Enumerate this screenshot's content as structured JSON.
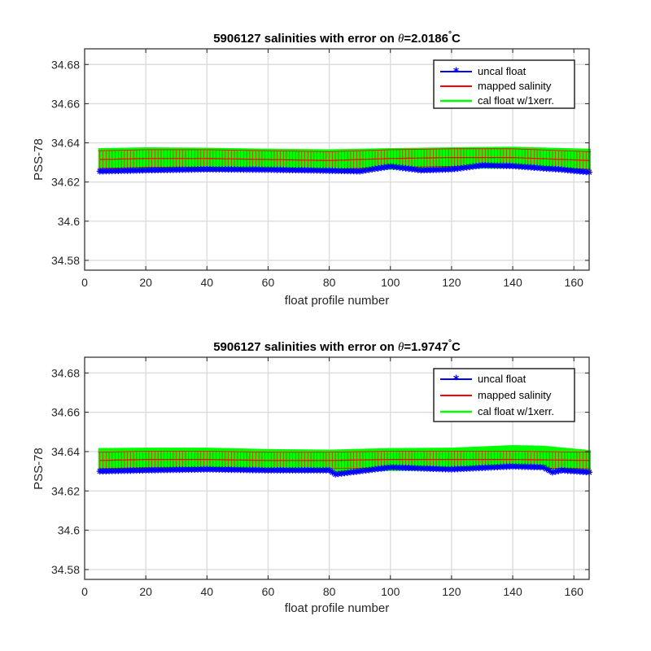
{
  "chart_data": [
    {
      "type": "line",
      "title_prefix": "5906127 salinities with error on ",
      "title_theta": "θ",
      "title_value": "=2.0186",
      "title_deg": "°",
      "title_unit": "C",
      "xlabel": "float profile number",
      "ylabel": "PSS-78",
      "xlim": [
        0,
        165
      ],
      "ylim": [
        34.575,
        34.688
      ],
      "xticks": [
        0,
        20,
        40,
        60,
        80,
        100,
        120,
        140,
        160
      ],
      "yticks": [
        34.58,
        34.6,
        34.62,
        34.64,
        34.66,
        34.68
      ],
      "ytick_labels": [
        "34.58",
        "34.6",
        "34.62",
        "34.64",
        "34.66",
        "34.68"
      ],
      "grid": true,
      "legend_position": "top-right",
      "legend": [
        "uncal float",
        "mapped salinity",
        "cal float w/1xerr."
      ],
      "colors": {
        "uncal": "#0000ff",
        "mapped": "#ff0000",
        "cal": "#00ff00"
      },
      "x_start": 5,
      "x_end": 165,
      "series": [
        {
          "name": "uncal float",
          "keypoints_x": [
            5,
            20,
            40,
            60,
            80,
            90,
            100,
            110,
            120,
            130,
            140,
            150,
            155,
            165
          ],
          "keypoints_y": [
            34.6255,
            34.626,
            34.6265,
            34.6263,
            34.6258,
            34.6255,
            34.628,
            34.626,
            34.6265,
            34.6285,
            34.6282,
            34.627,
            34.6265,
            34.625
          ]
        },
        {
          "name": "mapped salinity",
          "keypoints_x": [
            5,
            20,
            40,
            60,
            80,
            100,
            120,
            140,
            165
          ],
          "keypoints_y": [
            34.6315,
            34.632,
            34.632,
            34.6315,
            34.631,
            34.632,
            34.6325,
            34.6325,
            34.631
          ],
          "error": 0.0045
        },
        {
          "name": "cal float w/1xerr.",
          "keypoints_x": [
            5,
            20,
            40,
            60,
            80,
            100,
            120,
            140,
            165
          ],
          "keypoints_y": [
            34.6318,
            34.6322,
            34.632,
            34.6315,
            34.6312,
            34.6318,
            34.6322,
            34.6325,
            34.6315
          ],
          "error": 0.0055
        }
      ]
    },
    {
      "type": "line",
      "title_prefix": "5906127 salinities with error on ",
      "title_theta": "θ",
      "title_value": "=1.9747",
      "title_deg": "°",
      "title_unit": "C",
      "xlabel": "float profile number",
      "ylabel": "PSS-78",
      "xlim": [
        0,
        165
      ],
      "ylim": [
        34.575,
        34.688
      ],
      "xticks": [
        0,
        20,
        40,
        60,
        80,
        100,
        120,
        140,
        160
      ],
      "yticks": [
        34.58,
        34.6,
        34.62,
        34.64,
        34.66,
        34.68
      ],
      "ytick_labels": [
        "34.58",
        "34.6",
        "34.62",
        "34.64",
        "34.66",
        "34.68"
      ],
      "grid": true,
      "legend_position": "top-right",
      "legend": [
        "uncal float",
        "mapped salinity",
        "cal float w/1xerr."
      ],
      "colors": {
        "uncal": "#0000ff",
        "mapped": "#ff0000",
        "cal": "#00ff00"
      },
      "x_start": 5,
      "x_end": 165,
      "series": [
        {
          "name": "uncal float",
          "keypoints_x": [
            5,
            20,
            40,
            60,
            80,
            82,
            100,
            120,
            140,
            150,
            153,
            156,
            165
          ],
          "keypoints_y": [
            34.63,
            34.6305,
            34.631,
            34.6305,
            34.6305,
            34.6285,
            34.632,
            34.631,
            34.6325,
            34.632,
            34.6295,
            34.6305,
            34.6295
          ]
        },
        {
          "name": "mapped salinity",
          "keypoints_x": [
            5,
            20,
            40,
            60,
            80,
            100,
            120,
            140,
            165
          ],
          "keypoints_y": [
            34.6355,
            34.636,
            34.636,
            34.6355,
            34.6355,
            34.636,
            34.636,
            34.636,
            34.6355
          ],
          "error": 0.0042
        },
        {
          "name": "cal float w/1xerr.",
          "keypoints_x": [
            5,
            20,
            40,
            60,
            80,
            100,
            120,
            140,
            150,
            165
          ],
          "keypoints_y": [
            34.636,
            34.6362,
            34.6362,
            34.6355,
            34.6352,
            34.636,
            34.6362,
            34.6375,
            34.6372,
            34.635
          ],
          "error": 0.0058
        }
      ]
    }
  ]
}
